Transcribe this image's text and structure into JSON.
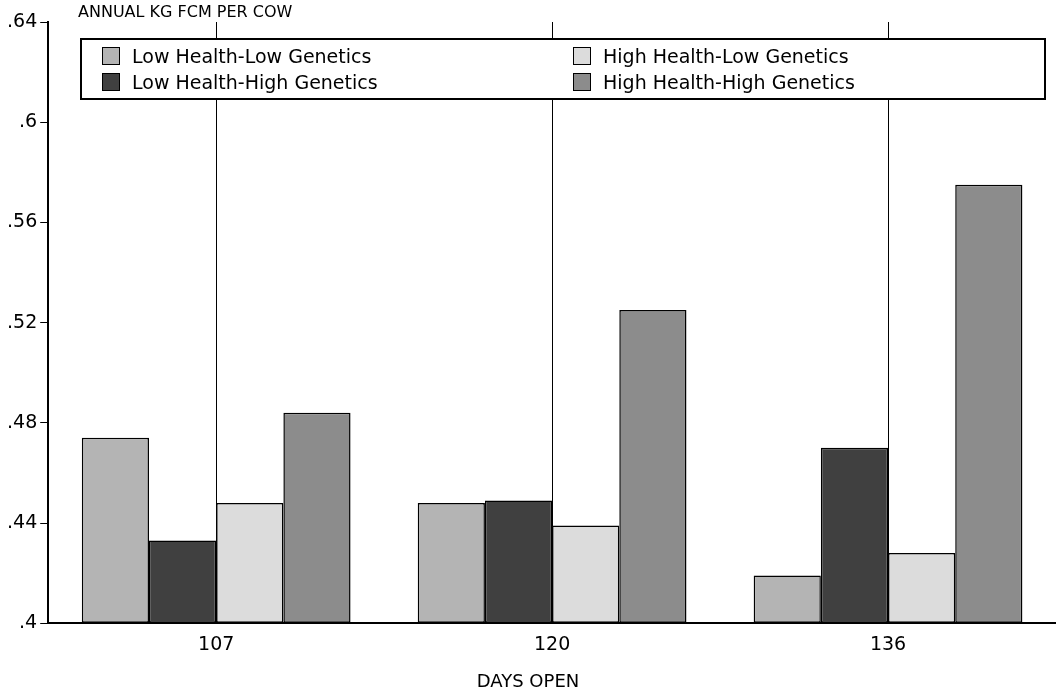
{
  "chart_data": {
    "type": "bar",
    "ylabel": "ANNUAL KG FCM PER COW",
    "xlabel": "DAYS OPEN",
    "categories": [
      "107",
      "120",
      "136"
    ],
    "series": [
      {
        "name": "Low Health-Low Genetics",
        "color": "#b4b4b4",
        "values": [
          0.474,
          0.448,
          0.419
        ]
      },
      {
        "name": "Low Health-High Genetics",
        "color": "#404040",
        "values": [
          0.433,
          0.449,
          0.47
        ]
      },
      {
        "name": "High Health-Low Genetics",
        "color": "#dcdcdc",
        "values": [
          0.448,
          0.439,
          0.428
        ]
      },
      {
        "name": "High Health-High Genetics",
        "color": "#8c8c8c",
        "values": [
          0.484,
          0.525,
          0.575
        ]
      }
    ],
    "ylim": [
      0.4,
      0.64
    ],
    "yticks": [
      {
        "value": 0.4,
        "label": ".4"
      },
      {
        "value": 0.44,
        "label": ".44"
      },
      {
        "value": 0.48,
        "label": ".48"
      },
      {
        "value": 0.52,
        "label": ".52"
      },
      {
        "value": 0.56,
        "label": ".56"
      },
      {
        "value": 0.6,
        "label": ".6"
      },
      {
        "value": 0.64,
        "label": ".64"
      }
    ],
    "grid": "x",
    "legend": "top"
  }
}
